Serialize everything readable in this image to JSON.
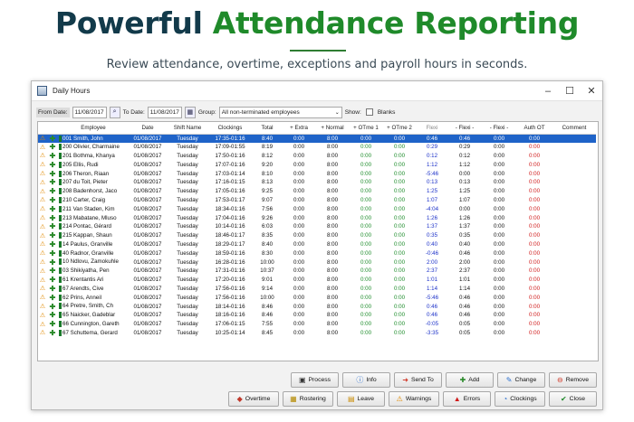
{
  "hero": {
    "title_a": "Powerful ",
    "title_b": "Attendance Reporting",
    "subtitle": "Review attendance, overtime, exceptions and payroll hours in seconds."
  },
  "window": {
    "title": "Daily Hours",
    "controls": [
      "–",
      "☐",
      "✕"
    ]
  },
  "filters": {
    "from_label": "From Date:",
    "from_value": "11/08/2017",
    "to_label": "To Date:",
    "to_value": "11/08/2017",
    "group_label": "Group:",
    "group_value": "All non-terminated employees",
    "show_label": "Show:",
    "blanks_label": "Blanks",
    "blanks_checked": false
  },
  "columns": [
    "",
    "",
    "Employee",
    "Date",
    "Shift Name",
    "Clockings",
    "Total",
    "+ Extra",
    "+ Normal",
    "+ OTme 1",
    "+ OTme 2",
    "Flexi",
    "- Flexi -",
    "- Flexi -",
    "Auth OT",
    "Comment"
  ],
  "rows": [
    {
      "emp": "001 Smith, John",
      "date": "01/08/2017",
      "shift": "Tuesday",
      "clock": "17:35-01:16",
      "total": "8:40",
      "extra": "0:00",
      "normal": "8:00",
      "ot1": "0:00",
      "ot2": "0:00",
      "flexi": "0:46",
      "f2": "0:46",
      "f3": "0:00",
      "auth": "0:00",
      "selected": true
    },
    {
      "emp": "200 Olivier, Charmaine",
      "date": "01/08/2017",
      "shift": "Tuesday",
      "clock": "17:09-01:55",
      "total": "8:19",
      "extra": "0:00",
      "normal": "8:00",
      "ot1": "0:00",
      "ot2": "0:00",
      "flexi": "0:29",
      "f2": "0:29",
      "f3": "0:00",
      "auth": "0:00"
    },
    {
      "emp": "201 Bothma, Khanya",
      "date": "01/08/2017",
      "shift": "Tuesday",
      "clock": "17:50-01:16",
      "total": "8:12",
      "extra": "0:00",
      "normal": "8:00",
      "ot1": "0:00",
      "ot2": "0:00",
      "flexi": "0:12",
      "f2": "0:12",
      "f3": "0:00",
      "auth": "0:00"
    },
    {
      "emp": "205 Ellis, Rudi",
      "date": "01/08/2017",
      "shift": "Tuesday",
      "clock": "17:07-01:16",
      "total": "9:20",
      "extra": "0:00",
      "normal": "8:00",
      "ot1": "0:00",
      "ot2": "0:00",
      "flexi": "1:12",
      "f2": "1:12",
      "f3": "0:00",
      "auth": "0:00"
    },
    {
      "emp": "206 Theron, Riaan",
      "date": "01/08/2017",
      "shift": "Tuesday",
      "clock": "17:03-01:14",
      "total": "8:10",
      "extra": "0:00",
      "normal": "8:00",
      "ot1": "0:00",
      "ot2": "0:00",
      "flexi": "-5:46",
      "f2": "0:00",
      "f3": "0:00",
      "auth": "0:00"
    },
    {
      "emp": "207 du Toit, Pieter",
      "date": "01/08/2017",
      "shift": "Tuesday",
      "clock": "17:16-01:15",
      "total": "8:13",
      "extra": "0:00",
      "normal": "8:00",
      "ot1": "0:00",
      "ot2": "0:00",
      "flexi": "0:13",
      "f2": "0:13",
      "f3": "0:00",
      "auth": "0:00"
    },
    {
      "emp": "208 Badenhorst, Jaco",
      "date": "01/08/2017",
      "shift": "Tuesday",
      "clock": "17:05-01:16",
      "total": "9:25",
      "extra": "0:00",
      "normal": "8:00",
      "ot1": "0:00",
      "ot2": "0:00",
      "flexi": "1:25",
      "f2": "1:25",
      "f3": "0:00",
      "auth": "0:00"
    },
    {
      "emp": "210 Carter, Craig",
      "date": "01/08/2017",
      "shift": "Tuesday",
      "clock": "17:53-01:17",
      "total": "9:07",
      "extra": "0:00",
      "normal": "8:00",
      "ot1": "0:00",
      "ot2": "0:00",
      "flexi": "1:07",
      "f2": "1:07",
      "f3": "0:00",
      "auth": "0:00"
    },
    {
      "emp": "211 Van Staden, Kim",
      "date": "01/08/2017",
      "shift": "Tuesday",
      "clock": "18:34-01:16",
      "total": "7:56",
      "extra": "0:00",
      "normal": "8:00",
      "ot1": "0:00",
      "ot2": "0:00",
      "flexi": "-4:04",
      "f2": "0:00",
      "f3": "0:00",
      "auth": "0:00"
    },
    {
      "emp": "213 Mabatane, Mluso",
      "date": "01/08/2017",
      "shift": "Tuesday",
      "clock": "17:04-01:16",
      "total": "9:26",
      "extra": "0:00",
      "normal": "8:00",
      "ot1": "0:00",
      "ot2": "0:00",
      "flexi": "1:26",
      "f2": "1:26",
      "f3": "0:00",
      "auth": "0:00"
    },
    {
      "emp": "214 Pontac, Gérard",
      "date": "01/08/2017",
      "shift": "Tuesday",
      "clock": "10:14-01:16",
      "total": "6:03",
      "extra": "0:00",
      "normal": "8:00",
      "ot1": "0:00",
      "ot2": "0:00",
      "flexi": "1:37",
      "f2": "1:37",
      "f3": "0:00",
      "auth": "0:00"
    },
    {
      "emp": "215 Kappan, Shaun",
      "date": "01/08/2017",
      "shift": "Tuesday",
      "clock": "18:46-01:17",
      "total": "8:35",
      "extra": "0:00",
      "normal": "8:00",
      "ot1": "0:00",
      "ot2": "0:00",
      "flexi": "0:35",
      "f2": "0:35",
      "f3": "0:00",
      "auth": "0:00"
    },
    {
      "emp": "14 Paulus, Granville",
      "date": "01/08/2017",
      "shift": "Tuesday",
      "clock": "18:29-01:17",
      "total": "8:40",
      "extra": "0:00",
      "normal": "8:00",
      "ot1": "0:00",
      "ot2": "0:00",
      "flexi": "0:40",
      "f2": "0:40",
      "f3": "0:00",
      "auth": "0:00"
    },
    {
      "emp": "40 Radnor, Granville",
      "date": "01/08/2017",
      "shift": "Tuesday",
      "clock": "18:59-01:16",
      "total": "8:30",
      "extra": "0:00",
      "normal": "8:00",
      "ot1": "0:00",
      "ot2": "0:00",
      "flexi": "-0:46",
      "f2": "0:46",
      "f3": "0:00",
      "auth": "0:00"
    },
    {
      "emp": "10 Ndlovu, Zamokuhle",
      "date": "01/08/2017",
      "shift": "Tuesday",
      "clock": "16:28-01:16",
      "total": "10:00",
      "extra": "0:00",
      "normal": "8:00",
      "ot1": "0:00",
      "ot2": "0:00",
      "flexi": "2:00",
      "f2": "2:00",
      "f3": "0:00",
      "auth": "0:00"
    },
    {
      "emp": "03 Shikiyatha, Pen",
      "date": "01/08/2017",
      "shift": "Tuesday",
      "clock": "17:31-01:16",
      "total": "10:37",
      "extra": "0:00",
      "normal": "8:00",
      "ot1": "0:00",
      "ot2": "0:00",
      "flexi": "2:37",
      "f2": "2:37",
      "f3": "0:00",
      "auth": "0:00"
    },
    {
      "emp": "61 Krentantis Ari",
      "date": "01/08/2017",
      "shift": "Tuesday",
      "clock": "17:20-01:16",
      "total": "9:01",
      "extra": "0:00",
      "normal": "8:00",
      "ot1": "0:00",
      "ot2": "0:00",
      "flexi": "1:01",
      "f2": "1:01",
      "f3": "0:00",
      "auth": "0:00"
    },
    {
      "emp": "67 Arendts, Cive",
      "date": "01/08/2017",
      "shift": "Tuesday",
      "clock": "17:56-01:16",
      "total": "9:14",
      "extra": "0:00",
      "normal": "8:00",
      "ot1": "0:00",
      "ot2": "0:00",
      "flexi": "1:14",
      "f2": "1:14",
      "f3": "0:00",
      "auth": "0:00"
    },
    {
      "emp": "62 Prins, Anneil",
      "date": "01/08/2017",
      "shift": "Tuesday",
      "clock": "17:56-01:16",
      "total": "10:00",
      "extra": "0:00",
      "normal": "8:00",
      "ot1": "0:00",
      "ot2": "0:00",
      "flexi": "-5:46",
      "f2": "0:46",
      "f3": "0:00",
      "auth": "0:00"
    },
    {
      "emp": "64 Pretre, Smith, Ch",
      "date": "01/08/2017",
      "shift": "Tuesday",
      "clock": "18:14-01:16",
      "total": "8:46",
      "extra": "0:00",
      "normal": "8:00",
      "ot1": "0:00",
      "ot2": "0:00",
      "flexi": "0:46",
      "f2": "0:46",
      "f3": "0:00",
      "auth": "0:00"
    },
    {
      "emp": "65 Naicker, Gadeblar",
      "date": "01/08/2017",
      "shift": "Tuesday",
      "clock": "18:16-01:16",
      "total": "8:46",
      "extra": "0:00",
      "normal": "8:00",
      "ot1": "0:00",
      "ot2": "0:00",
      "flexi": "0:46",
      "f2": "0:46",
      "f3": "0:00",
      "auth": "0:00"
    },
    {
      "emp": "66 Cunnington, Gareth",
      "date": "01/08/2017",
      "shift": "Tuesday",
      "clock": "17:06-01:15",
      "total": "7:55",
      "extra": "0:00",
      "normal": "8:00",
      "ot1": "0:00",
      "ot2": "0:00",
      "flexi": "-0:05",
      "f2": "0:05",
      "f3": "0:00",
      "auth": "0:00"
    },
    {
      "emp": "67 Schuttema, Gerard",
      "date": "01/08/2017",
      "shift": "Tuesday",
      "clock": "10:25-01:14",
      "total": "8:45",
      "extra": "0:00",
      "normal": "8:00",
      "ot1": "0:00",
      "ot2": "0:00",
      "flexi": "-3:35",
      "f2": "0:05",
      "f3": "0:00",
      "auth": "0:00"
    }
  ],
  "buttons_row1": [
    {
      "name": "process-button",
      "icon": "process-icon",
      "glyph": "▣",
      "label": "Process"
    },
    {
      "name": "info-button",
      "icon": "info-icon",
      "glyph": "ⓘ",
      "label": "Info"
    },
    {
      "name": "send-to-button",
      "icon": "send-to-icon",
      "glyph": "➜",
      "label": "Send To"
    },
    {
      "name": "add-button",
      "icon": "add-icon",
      "glyph": "✚",
      "label": "Add"
    },
    {
      "name": "change-button",
      "icon": "pencil-icon",
      "glyph": "✎",
      "label": "Change"
    },
    {
      "name": "remove-button",
      "icon": "remove-icon",
      "glyph": "⊖",
      "label": "Remove"
    }
  ],
  "buttons_row2": [
    {
      "name": "overtime-button",
      "icon": "overtime-icon",
      "glyph": "◆",
      "label": "Overtime"
    },
    {
      "name": "rostering-button",
      "icon": "rostering-icon",
      "glyph": "▦",
      "label": "Rostering"
    },
    {
      "name": "leave-button",
      "icon": "leave-icon",
      "glyph": "▤",
      "label": "Leave"
    },
    {
      "name": "warnings-button",
      "icon": "warning-icon",
      "glyph": "⚠",
      "label": "Warnings"
    },
    {
      "name": "errors-button",
      "icon": "error-icon",
      "glyph": "▲",
      "label": "Errors"
    },
    {
      "name": "clockings-button",
      "icon": "clock-icon",
      "glyph": "◔",
      "label": "Clockings"
    },
    {
      "name": "close-button",
      "icon": "close-icon",
      "glyph": "✔",
      "label": "Close"
    }
  ],
  "colors": {
    "title_dark": "#123a4a",
    "title_green": "#1f8a2a",
    "selection": "#1f63c8",
    "flexi_blue": "#1a2fc8",
    "auth_red": "#d01a1a",
    "ot_green": "#1c8c2a"
  }
}
